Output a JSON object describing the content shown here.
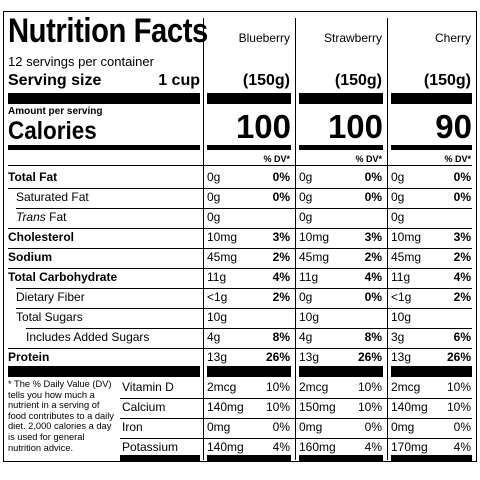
{
  "label": {
    "title": "Nutrition Facts",
    "servings": "12 servings per container",
    "serving_size_label": "Serving size",
    "serving_size_value": "1 cup",
    "amount_per_serving": "Amount per serving",
    "calories_label": "Calories",
    "dv_header": "% DV*",
    "footnote": "* The % Daily Value (DV) tells you how much a nutrient in a serving of food contributes to a daily diet. 2,000 calories a day is used for general nutrition advice."
  },
  "flavors": [
    {
      "name": "Blueberry",
      "serving_g": "(150g)",
      "calories": "100"
    },
    {
      "name": "Strawberry",
      "serving_g": "(150g)",
      "calories": "100"
    },
    {
      "name": "Cherry",
      "serving_g": "(150g)",
      "calories": "90"
    }
  ],
  "nutrients": [
    {
      "label": "Total Fat",
      "values": [
        [
          "0g",
          "0%"
        ],
        [
          "0g",
          "0%"
        ],
        [
          "0g",
          "0%"
        ]
      ]
    },
    {
      "label": "Saturated Fat",
      "values": [
        [
          "0g",
          "0%"
        ],
        [
          "0g",
          "0%"
        ],
        [
          "0g",
          "0%"
        ]
      ]
    },
    {
      "label_italic": "Trans",
      "label": "Fat",
      "values": [
        [
          "0g",
          ""
        ],
        [
          "0g",
          ""
        ],
        [
          "0g",
          ""
        ]
      ]
    },
    {
      "label": "Cholesterol",
      "values": [
        [
          "10mg",
          "3%"
        ],
        [
          "10mg",
          "3%"
        ],
        [
          "10mg",
          "3%"
        ]
      ]
    },
    {
      "label": "Sodium",
      "values": [
        [
          "45mg",
          "2%"
        ],
        [
          "45mg",
          "2%"
        ],
        [
          "45mg",
          "2%"
        ]
      ]
    },
    {
      "label": "Total Carbohydrate",
      "values": [
        [
          "11g",
          "4%"
        ],
        [
          "11g",
          "4%"
        ],
        [
          "11g",
          "4%"
        ]
      ]
    },
    {
      "label": "Dietary Fiber",
      "values": [
        [
          "<1g",
          "2%"
        ],
        [
          "0g",
          "0%"
        ],
        [
          "<1g",
          "2%"
        ]
      ]
    },
    {
      "label": "Total Sugars",
      "values": [
        [
          "10g",
          ""
        ],
        [
          "10g",
          ""
        ],
        [
          "10g",
          ""
        ]
      ]
    },
    {
      "label": "Includes Added Sugars",
      "values": [
        [
          "4g",
          "8%"
        ],
        [
          "4g",
          "8%"
        ],
        [
          "3g",
          "6%"
        ]
      ]
    },
    {
      "label": "Protein",
      "values": [
        [
          "13g",
          "26%"
        ],
        [
          "13g",
          "26%"
        ],
        [
          "13g",
          "26%"
        ]
      ]
    }
  ],
  "vitamins": [
    {
      "label": "Vitamin D",
      "values": [
        [
          "2mcg",
          "10%"
        ],
        [
          "2mcg",
          "10%"
        ],
        [
          "2mcg",
          "10%"
        ]
      ]
    },
    {
      "label": "Calcium",
      "values": [
        [
          "140mg",
          "10%"
        ],
        [
          "150mg",
          "10%"
        ],
        [
          "140mg",
          "10%"
        ]
      ]
    },
    {
      "label": "Iron",
      "values": [
        [
          "0mg",
          "0%"
        ],
        [
          "0mg",
          "0%"
        ],
        [
          "0mg",
          "0%"
        ]
      ]
    },
    {
      "label": "Potassium",
      "values": [
        [
          "140mg",
          "4%"
        ],
        [
          "160mg",
          "4%"
        ],
        [
          "170mg",
          "4%"
        ]
      ]
    }
  ]
}
